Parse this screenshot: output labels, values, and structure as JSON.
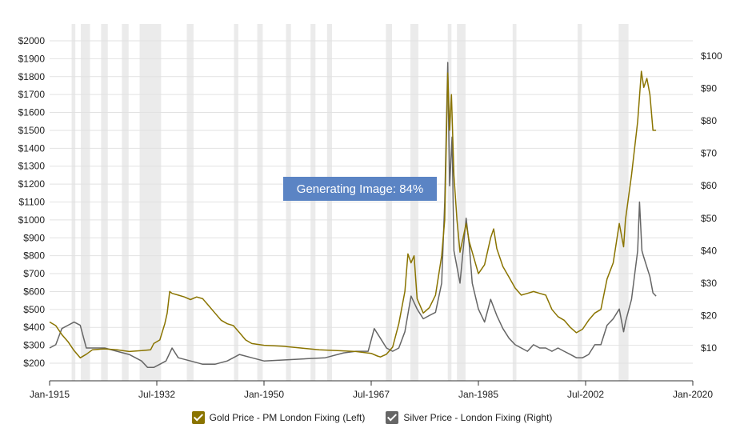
{
  "banner": "Generating Image: 84%",
  "legend": [
    {
      "label": "Gold Price - PM London Fixing (Left)",
      "color": "#8a7400"
    },
    {
      "label": "Silver Price - London Fixing (Right)",
      "color": "#666666"
    }
  ],
  "chart_data": {
    "type": "line",
    "left_axis": {
      "min": 200,
      "max": 2000,
      "step": 100,
      "tick_labels": [
        "$200",
        "$300",
        "$400",
        "$500",
        "$600",
        "$700",
        "$800",
        "$900",
        "$1000",
        "$1100",
        "$1200",
        "$1300",
        "$1400",
        "$1500",
        "$1600",
        "$1700",
        "$1800",
        "$1900",
        "$2000"
      ]
    },
    "right_axis": {
      "min": 5,
      "max": 100,
      "tick_values": [
        10,
        20,
        30,
        40,
        50,
        60,
        70,
        80,
        90,
        100
      ],
      "tick_labels": [
        "$10",
        "$20",
        "$30",
        "$40",
        "$50",
        "$60",
        "$70",
        "$80",
        "$90",
        "$100"
      ]
    },
    "x_axis": {
      "min": 1915.0,
      "max": 2020.0,
      "tick_values": [
        1915.0,
        1932.5,
        1950.0,
        1967.5,
        1985.0,
        2002.5,
        2020.0
      ],
      "tick_labels": [
        "Jan-1915",
        "Jul-1932",
        "Jan-1950",
        "Jul-1967",
        "Jan-1985",
        "Jul-2002",
        "Jan-2020"
      ]
    },
    "grid": true,
    "recessions": [
      [
        1918.6,
        1919.2
      ],
      [
        1920.1,
        1921.6
      ],
      [
        1923.4,
        1924.5
      ],
      [
        1926.8,
        1927.9
      ],
      [
        1929.7,
        1933.2
      ],
      [
        1937.4,
        1938.5
      ],
      [
        1945.1,
        1945.8
      ],
      [
        1948.9,
        1949.8
      ],
      [
        1953.6,
        1954.4
      ],
      [
        1957.6,
        1958.4
      ],
      [
        1960.3,
        1961.1
      ],
      [
        1969.9,
        1970.9
      ],
      [
        1973.9,
        1975.2
      ],
      [
        1980.0,
        1980.6
      ],
      [
        1981.5,
        1982.9
      ],
      [
        1990.6,
        1991.2
      ],
      [
        2001.2,
        2001.9
      ],
      [
        2007.9,
        2009.5
      ]
    ],
    "series": [
      {
        "name": "Gold Price - PM London Fixing (Left)",
        "axis": "left",
        "color": "#8a7400",
        "points": [
          [
            1915.0,
            430
          ],
          [
            1916.0,
            410
          ],
          [
            1917.0,
            360
          ],
          [
            1918.0,
            320
          ],
          [
            1919.0,
            270
          ],
          [
            1920.0,
            230
          ],
          [
            1921.0,
            250
          ],
          [
            1922.0,
            275
          ],
          [
            1924.0,
            280
          ],
          [
            1926.0,
            275
          ],
          [
            1928.0,
            265
          ],
          [
            1930.0,
            270
          ],
          [
            1931.5,
            275
          ],
          [
            1932.0,
            310
          ],
          [
            1933.0,
            330
          ],
          [
            1933.8,
            420
          ],
          [
            1934.2,
            480
          ],
          [
            1934.6,
            600
          ],
          [
            1935.0,
            590
          ],
          [
            1936.0,
            580
          ],
          [
            1937.0,
            570
          ],
          [
            1938.0,
            555
          ],
          [
            1939.0,
            570
          ],
          [
            1940.0,
            560
          ],
          [
            1941.0,
            520
          ],
          [
            1942.0,
            480
          ],
          [
            1943.0,
            440
          ],
          [
            1944.0,
            420
          ],
          [
            1945.0,
            410
          ],
          [
            1946.0,
            370
          ],
          [
            1947.0,
            330
          ],
          [
            1948.0,
            310
          ],
          [
            1950.0,
            300
          ],
          [
            1953.0,
            295
          ],
          [
            1956.0,
            285
          ],
          [
            1959.0,
            275
          ],
          [
            1962.0,
            270
          ],
          [
            1965.0,
            265
          ],
          [
            1967.5,
            255
          ],
          [
            1968.5,
            240
          ],
          [
            1969.0,
            235
          ],
          [
            1970.0,
            250
          ],
          [
            1971.0,
            290
          ],
          [
            1972.0,
            420
          ],
          [
            1973.0,
            600
          ],
          [
            1973.5,
            810
          ],
          [
            1974.0,
            760
          ],
          [
            1974.5,
            800
          ],
          [
            1975.0,
            560
          ],
          [
            1976.0,
            480
          ],
          [
            1977.0,
            510
          ],
          [
            1978.0,
            580
          ],
          [
            1979.0,
            800
          ],
          [
            1979.5,
            1000
          ],
          [
            1980.0,
            1820
          ],
          [
            1980.3,
            1500
          ],
          [
            1980.6,
            1700
          ],
          [
            1981.0,
            1250
          ],
          [
            1981.5,
            1000
          ],
          [
            1982.0,
            820
          ],
          [
            1983.0,
            980
          ],
          [
            1983.5,
            880
          ],
          [
            1984.0,
            820
          ],
          [
            1985.0,
            700
          ],
          [
            1986.0,
            750
          ],
          [
            1987.0,
            900
          ],
          [
            1987.5,
            950
          ],
          [
            1988.0,
            840
          ],
          [
            1989.0,
            740
          ],
          [
            1990.0,
            680
          ],
          [
            1991.0,
            620
          ],
          [
            1992.0,
            580
          ],
          [
            1993.0,
            590
          ],
          [
            1994.0,
            600
          ],
          [
            1995.0,
            590
          ],
          [
            1996.0,
            580
          ],
          [
            1997.0,
            500
          ],
          [
            1998.0,
            460
          ],
          [
            1999.0,
            440
          ],
          [
            2000.0,
            400
          ],
          [
            2001.0,
            370
          ],
          [
            2002.0,
            390
          ],
          [
            2003.0,
            440
          ],
          [
            2004.0,
            480
          ],
          [
            2005.0,
            500
          ],
          [
            2006.0,
            670
          ],
          [
            2007.0,
            760
          ],
          [
            2008.0,
            980
          ],
          [
            2008.7,
            850
          ],
          [
            2009.0,
            1000
          ],
          [
            2010.0,
            1250
          ],
          [
            2011.0,
            1550
          ],
          [
            2011.6,
            1830
          ],
          [
            2012.0,
            1740
          ],
          [
            2012.5,
            1790
          ],
          [
            2013.0,
            1700
          ],
          [
            2013.5,
            1500
          ],
          [
            2014.0,
            1500
          ]
        ]
      },
      {
        "name": "Silver Price - London Fixing (Right)",
        "axis": "right",
        "color": "#666666",
        "points": [
          [
            1915.0,
            10
          ],
          [
            1916.0,
            11
          ],
          [
            1917.0,
            16
          ],
          [
            1918.0,
            17
          ],
          [
            1919.0,
            18
          ],
          [
            1920.0,
            17
          ],
          [
            1921.0,
            10
          ],
          [
            1922.0,
            10
          ],
          [
            1924.0,
            10
          ],
          [
            1926.0,
            9
          ],
          [
            1928.0,
            8
          ],
          [
            1930.0,
            6
          ],
          [
            1931.0,
            4
          ],
          [
            1932.0,
            4
          ],
          [
            1933.0,
            5
          ],
          [
            1934.0,
            6
          ],
          [
            1935.0,
            10
          ],
          [
            1936.0,
            7
          ],
          [
            1938.0,
            6
          ],
          [
            1940.0,
            5
          ],
          [
            1942.0,
            5
          ],
          [
            1944.0,
            6
          ],
          [
            1946.0,
            8
          ],
          [
            1948.0,
            7
          ],
          [
            1950.0,
            6
          ],
          [
            1955.0,
            6.5
          ],
          [
            1960.0,
            7
          ],
          [
            1963.0,
            8.5
          ],
          [
            1965.0,
            9
          ],
          [
            1967.0,
            9
          ],
          [
            1968.0,
            16
          ],
          [
            1969.0,
            13
          ],
          [
            1970.0,
            10
          ],
          [
            1971.0,
            9
          ],
          [
            1972.0,
            10
          ],
          [
            1973.0,
            15
          ],
          [
            1974.0,
            26
          ],
          [
            1975.0,
            22
          ],
          [
            1976.0,
            19
          ],
          [
            1977.0,
            20
          ],
          [
            1978.0,
            21
          ],
          [
            1979.0,
            30
          ],
          [
            1979.5,
            55
          ],
          [
            1980.0,
            98
          ],
          [
            1980.3,
            60
          ],
          [
            1980.7,
            75
          ],
          [
            1981.0,
            40
          ],
          [
            1982.0,
            30
          ],
          [
            1983.0,
            50
          ],
          [
            1983.5,
            42
          ],
          [
            1984.0,
            30
          ],
          [
            1985.0,
            22
          ],
          [
            1986.0,
            18
          ],
          [
            1987.0,
            25
          ],
          [
            1988.0,
            20
          ],
          [
            1989.0,
            16
          ],
          [
            1990.0,
            13
          ],
          [
            1991.0,
            11
          ],
          [
            1992.0,
            10
          ],
          [
            1993.0,
            9
          ],
          [
            1994.0,
            11
          ],
          [
            1995.0,
            10
          ],
          [
            1996.0,
            10
          ],
          [
            1997.0,
            9
          ],
          [
            1998.0,
            10
          ],
          [
            1999.0,
            9
          ],
          [
            2000.0,
            8
          ],
          [
            2001.0,
            7
          ],
          [
            2002.0,
            7
          ],
          [
            2003.0,
            8
          ],
          [
            2004.0,
            11
          ],
          [
            2005.0,
            11
          ],
          [
            2006.0,
            17
          ],
          [
            2007.0,
            19
          ],
          [
            2008.0,
            22
          ],
          [
            2008.7,
            15
          ],
          [
            2009.0,
            18
          ],
          [
            2010.0,
            25
          ],
          [
            2011.0,
            40
          ],
          [
            2011.3,
            55
          ],
          [
            2011.7,
            40
          ],
          [
            2012.0,
            38
          ],
          [
            2013.0,
            32
          ],
          [
            2013.5,
            27
          ],
          [
            2014.0,
            26
          ]
        ]
      }
    ]
  }
}
